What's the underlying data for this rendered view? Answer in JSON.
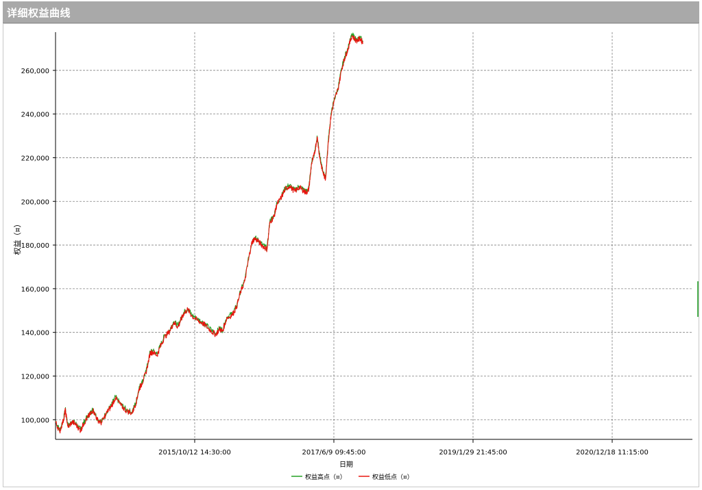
{
  "window": {
    "title": "详细权益曲线"
  },
  "colors": {
    "titlebar": "#a9a9a9",
    "high_series": "#22a022",
    "low_series": "#e8150f",
    "grid": "#808080"
  },
  "chart_data": {
    "type": "line",
    "title": "",
    "xlabel": "日期",
    "ylabel": "权益（¤）",
    "ylim": [
      91000,
      277500
    ],
    "yticks": [
      100000,
      120000,
      140000,
      160000,
      180000,
      200000,
      220000,
      240000,
      260000
    ],
    "ytick_labels": [
      "100,000",
      "120,000",
      "140,000",
      "160,000",
      "180,000",
      "200,000",
      "220,000",
      "240,000",
      "260,000"
    ],
    "xticks": [
      "2015/10/12 14:30:00",
      "2017/6/9 09:45:00",
      "2019/1/29 21:45:00",
      "2020/12/18 11:15:00"
    ],
    "grid": true,
    "legend_position": "bottom-center",
    "series": [
      {
        "name": "权益高点（¤）",
        "color": "#22a022",
        "points": [
          [
            0.0,
            99500
          ],
          [
            0.03,
            95000
          ],
          [
            0.06,
            101000
          ],
          [
            0.07,
            105000
          ],
          [
            0.09,
            97000
          ],
          [
            0.12,
            99500
          ],
          [
            0.15,
            98000
          ],
          [
            0.18,
            95500
          ],
          [
            0.2,
            98500
          ],
          [
            0.23,
            101500
          ],
          [
            0.25,
            103000
          ],
          [
            0.27,
            105000
          ],
          [
            0.3,
            100500
          ],
          [
            0.33,
            99000
          ],
          [
            0.37,
            104000
          ],
          [
            0.4,
            106500
          ],
          [
            0.43,
            110500
          ],
          [
            0.47,
            107000
          ],
          [
            0.51,
            104500
          ],
          [
            0.55,
            103500
          ],
          [
            0.58,
            108500
          ],
          [
            0.6,
            114500
          ],
          [
            0.62,
            117000
          ],
          [
            0.65,
            122000
          ],
          [
            0.68,
            131000
          ],
          [
            0.7,
            131500
          ],
          [
            0.73,
            130000
          ],
          [
            0.75,
            133500
          ],
          [
            0.78,
            138000
          ],
          [
            0.82,
            141000
          ],
          [
            0.85,
            145000
          ],
          [
            0.88,
            143000
          ],
          [
            0.9,
            146000
          ],
          [
            0.92,
            149000
          ],
          [
            0.95,
            151000
          ],
          [
            0.98,
            148000
          ],
          [
            1.02,
            146000
          ],
          [
            1.05,
            145000
          ],
          [
            1.08,
            143500
          ],
          [
            1.12,
            141000
          ],
          [
            1.15,
            139500
          ],
          [
            1.18,
            142000
          ],
          [
            1.2,
            141000
          ],
          [
            1.23,
            147000
          ],
          [
            1.27,
            148500
          ],
          [
            1.3,
            152000
          ],
          [
            1.33,
            159000
          ],
          [
            1.36,
            164000
          ],
          [
            1.39,
            175000
          ],
          [
            1.41,
            181500
          ],
          [
            1.43,
            183500
          ],
          [
            1.46,
            182000
          ],
          [
            1.49,
            180000
          ],
          [
            1.52,
            178500
          ],
          [
            1.54,
            191000
          ],
          [
            1.57,
            193500
          ],
          [
            1.59,
            199000
          ],
          [
            1.62,
            202000
          ],
          [
            1.65,
            206000
          ],
          [
            1.68,
            207500
          ],
          [
            1.72,
            205000
          ],
          [
            1.75,
            207000
          ],
          [
            1.78,
            205500
          ],
          [
            1.8,
            204500
          ],
          [
            1.82,
            206000
          ],
          [
            1.84,
            218000
          ],
          [
            1.86,
            222000
          ],
          [
            1.88,
            230000
          ],
          [
            1.9,
            220000
          ],
          [
            1.92,
            214000
          ],
          [
            1.94,
            210500
          ],
          [
            1.96,
            228000
          ],
          [
            1.98,
            240000
          ],
          [
            2.0,
            246000
          ],
          [
            2.03,
            252000
          ],
          [
            2.06,
            262000
          ],
          [
            2.08,
            266500
          ],
          [
            2.1,
            270000
          ],
          [
            2.13,
            276500
          ],
          [
            2.16,
            274000
          ],
          [
            2.19,
            275000
          ],
          [
            2.21,
            273000
          ]
        ]
      },
      {
        "name": "权益低点（¤）",
        "color": "#e8150f",
        "points": [
          [
            0.0,
            99000
          ],
          [
            0.03,
            94500
          ],
          [
            0.06,
            100500
          ],
          [
            0.07,
            104500
          ],
          [
            0.09,
            96500
          ],
          [
            0.12,
            99000
          ],
          [
            0.15,
            97500
          ],
          [
            0.18,
            95000
          ],
          [
            0.2,
            98000
          ],
          [
            0.23,
            101000
          ],
          [
            0.25,
            102500
          ],
          [
            0.27,
            104500
          ],
          [
            0.3,
            100000
          ],
          [
            0.33,
            98500
          ],
          [
            0.37,
            103500
          ],
          [
            0.4,
            106000
          ],
          [
            0.43,
            110000
          ],
          [
            0.47,
            106500
          ],
          [
            0.51,
            104000
          ],
          [
            0.55,
            103000
          ],
          [
            0.58,
            108000
          ],
          [
            0.6,
            114000
          ],
          [
            0.62,
            116500
          ],
          [
            0.65,
            121500
          ],
          [
            0.68,
            130500
          ],
          [
            0.7,
            131000
          ],
          [
            0.73,
            129500
          ],
          [
            0.75,
            133000
          ],
          [
            0.78,
            137500
          ],
          [
            0.82,
            140500
          ],
          [
            0.85,
            144500
          ],
          [
            0.88,
            142500
          ],
          [
            0.9,
            145500
          ],
          [
            0.92,
            148500
          ],
          [
            0.95,
            150500
          ],
          [
            0.98,
            147500
          ],
          [
            1.02,
            145500
          ],
          [
            1.05,
            144500
          ],
          [
            1.08,
            143000
          ],
          [
            1.12,
            140500
          ],
          [
            1.15,
            139000
          ],
          [
            1.18,
            141500
          ],
          [
            1.2,
            140500
          ],
          [
            1.23,
            146500
          ],
          [
            1.27,
            148000
          ],
          [
            1.3,
            151500
          ],
          [
            1.33,
            158500
          ],
          [
            1.36,
            163500
          ],
          [
            1.39,
            174500
          ],
          [
            1.41,
            181000
          ],
          [
            1.43,
            183000
          ],
          [
            1.46,
            181500
          ],
          [
            1.49,
            179500
          ],
          [
            1.52,
            178000
          ],
          [
            1.54,
            190500
          ],
          [
            1.57,
            193000
          ],
          [
            1.59,
            198500
          ],
          [
            1.62,
            201500
          ],
          [
            1.65,
            205500
          ],
          [
            1.68,
            207000
          ],
          [
            1.72,
            204500
          ],
          [
            1.75,
            206500
          ],
          [
            1.78,
            205000
          ],
          [
            1.8,
            204000
          ],
          [
            1.82,
            205500
          ],
          [
            1.84,
            217500
          ],
          [
            1.86,
            221500
          ],
          [
            1.88,
            229500
          ],
          [
            1.9,
            219500
          ],
          [
            1.92,
            213500
          ],
          [
            1.94,
            210000
          ],
          [
            1.96,
            227500
          ],
          [
            1.98,
            239500
          ],
          [
            2.0,
            245500
          ],
          [
            2.03,
            251500
          ],
          [
            2.06,
            261500
          ],
          [
            2.08,
            266000
          ],
          [
            2.1,
            269500
          ],
          [
            2.13,
            276000
          ],
          [
            2.16,
            273500
          ],
          [
            2.19,
            274500
          ],
          [
            2.21,
            272500
          ]
        ]
      }
    ]
  }
}
